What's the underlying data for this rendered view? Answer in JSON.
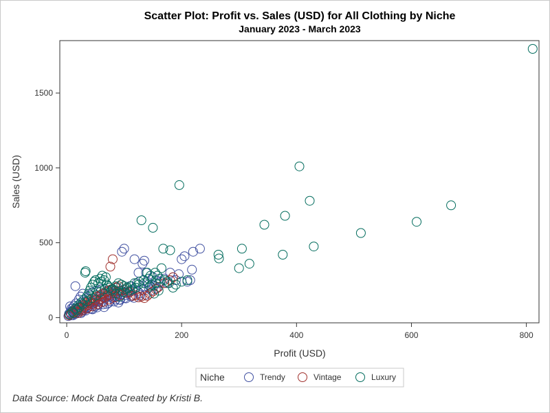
{
  "chart_data": {
    "type": "scatter",
    "title": "Scatter Plot: Profit vs. Sales (USD) for All Clothing by Niche",
    "subtitle": "January 2023 - March 2023",
    "xlabel": "Profit (USD)",
    "ylabel": "Sales (USD)",
    "xlim": [
      -12,
      822
    ],
    "ylim": [
      -35,
      1850
    ],
    "xticks": [
      0,
      200,
      400,
      600,
      800
    ],
    "yticks": [
      0,
      500,
      1000,
      1500
    ],
    "grid": false,
    "legend": {
      "title": "Niche",
      "position": "bottom-center"
    },
    "footnote": "Data Source: Mock Data Created by Kristi B.",
    "series": [
      {
        "name": "Trendy",
        "color": "#3f4fa0",
        "points": [
          [
            3,
            10
          ],
          [
            5,
            20
          ],
          [
            6,
            35
          ],
          [
            8,
            15
          ],
          [
            9,
            45
          ],
          [
            10,
            60
          ],
          [
            12,
            25
          ],
          [
            13,
            80
          ],
          [
            14,
            40
          ],
          [
            15,
            210
          ],
          [
            16,
            95
          ],
          [
            18,
            55
          ],
          [
            20,
            30
          ],
          [
            21,
            120
          ],
          [
            22,
            70
          ],
          [
            24,
            140
          ],
          [
            25,
            45
          ],
          [
            27,
            90
          ],
          [
            28,
            160
          ],
          [
            30,
            60
          ],
          [
            32,
            110
          ],
          [
            34,
            75
          ],
          [
            35,
            130
          ],
          [
            37,
            85
          ],
          [
            40,
            150
          ],
          [
            42,
            95
          ],
          [
            45,
            170
          ],
          [
            48,
            100
          ],
          [
            50,
            120
          ],
          [
            52,
            180
          ],
          [
            55,
            110
          ],
          [
            58,
            140
          ],
          [
            60,
            190
          ],
          [
            62,
            125
          ],
          [
            65,
            160
          ],
          [
            68,
            135
          ],
          [
            70,
            175
          ],
          [
            72,
            150
          ],
          [
            75,
            140
          ],
          [
            78,
            190
          ],
          [
            80,
            130
          ],
          [
            82,
            165
          ],
          [
            85,
            145
          ],
          [
            88,
            200
          ],
          [
            90,
            160
          ],
          [
            92,
            120
          ],
          [
            95,
            180
          ],
          [
            96,
            440
          ],
          [
            100,
            460
          ],
          [
            102,
            150
          ],
          [
            105,
            200
          ],
          [
            108,
            170
          ],
          [
            110,
            210
          ],
          [
            112,
            140
          ],
          [
            115,
            180
          ],
          [
            118,
            390
          ],
          [
            120,
            200
          ],
          [
            122,
            230
          ],
          [
            125,
            300
          ],
          [
            128,
            150
          ],
          [
            132,
            360
          ],
          [
            135,
            380
          ],
          [
            138,
            300
          ],
          [
            140,
            240
          ],
          [
            142,
            220
          ],
          [
            145,
            210
          ],
          [
            150,
            270
          ],
          [
            155,
            250
          ],
          [
            160,
            230
          ],
          [
            200,
            390
          ],
          [
            205,
            410
          ],
          [
            210,
            240
          ],
          [
            215,
            250
          ],
          [
            218,
            320
          ],
          [
            220,
            440
          ],
          [
            232,
            460
          ],
          [
            65,
            70
          ],
          [
            70,
            90
          ],
          [
            40,
            60
          ],
          [
            50,
            75
          ],
          [
            30,
            50
          ],
          [
            20,
            40
          ],
          [
            25,
            30
          ],
          [
            45,
            55
          ],
          [
            55,
            85
          ],
          [
            60,
            100
          ],
          [
            35,
            65
          ],
          [
            75,
            110
          ],
          [
            85,
            120
          ],
          [
            90,
            100
          ],
          [
            100,
            130
          ],
          [
            12,
            50
          ],
          [
            18,
            35
          ],
          [
            8,
            60
          ],
          [
            6,
            75
          ],
          [
            4,
            25
          ],
          [
            11,
            15
          ],
          [
            7,
            30
          ],
          [
            14,
            22
          ],
          [
            16,
            48
          ],
          [
            19,
            65
          ],
          [
            23,
            52
          ],
          [
            26,
            38
          ],
          [
            29,
            82
          ],
          [
            33,
            47
          ],
          [
            38,
            72
          ],
          [
            43,
            58
          ],
          [
            47,
            92
          ],
          [
            53,
            68
          ],
          [
            57,
            118
          ],
          [
            63,
            88
          ],
          [
            67,
            128
          ],
          [
            73,
            98
          ],
          [
            77,
            148
          ],
          [
            83,
            108
          ],
          [
            87,
            138
          ],
          [
            93,
            118
          ],
          [
            97,
            158
          ],
          [
            103,
            128
          ],
          [
            107,
            168
          ],
          [
            113,
            148
          ],
          [
            117,
            132
          ],
          [
            123,
            178
          ],
          [
            127,
            162
          ],
          [
            133,
            188
          ],
          [
            137,
            152
          ],
          [
            143,
            198
          ],
          [
            147,
            182
          ],
          [
            152,
            212
          ],
          [
            157,
            196
          ],
          [
            163,
            242
          ],
          [
            170,
            260
          ],
          [
            175,
            230
          ],
          [
            180,
            300
          ],
          [
            185,
            270
          ],
          [
            190,
            250
          ],
          [
            195,
            290
          ]
        ]
      },
      {
        "name": "Vintage",
        "color": "#a0302c",
        "points": [
          [
            4,
            15
          ],
          [
            8,
            25
          ],
          [
            12,
            35
          ],
          [
            15,
            50
          ],
          [
            18,
            40
          ],
          [
            22,
            65
          ],
          [
            25,
            55
          ],
          [
            28,
            80
          ],
          [
            30,
            70
          ],
          [
            33,
            95
          ],
          [
            36,
            85
          ],
          [
            38,
            110
          ],
          [
            40,
            100
          ],
          [
            42,
            120
          ],
          [
            45,
            90
          ],
          [
            48,
            130
          ],
          [
            50,
            115
          ],
          [
            52,
            140
          ],
          [
            55,
            105
          ],
          [
            58,
            150
          ],
          [
            60,
            125
          ],
          [
            62,
            160
          ],
          [
            65,
            135
          ],
          [
            68,
            170
          ],
          [
            70,
            145
          ],
          [
            72,
            180
          ],
          [
            75,
            155
          ],
          [
            76,
            340
          ],
          [
            78,
            190
          ],
          [
            80,
            390
          ],
          [
            82,
            175
          ],
          [
            85,
            200
          ],
          [
            88,
            165
          ],
          [
            90,
            210
          ],
          [
            92,
            180
          ],
          [
            95,
            220
          ],
          [
            100,
            185
          ],
          [
            105,
            200
          ],
          [
            110,
            170
          ],
          [
            115,
            145
          ],
          [
            120,
            150
          ],
          [
            125,
            135
          ],
          [
            130,
            140
          ],
          [
            135,
            130
          ],
          [
            140,
            145
          ],
          [
            145,
            160
          ],
          [
            150,
            175
          ],
          [
            155,
            190
          ],
          [
            160,
            205
          ],
          [
            170,
            230
          ],
          [
            180,
            250
          ],
          [
            185,
            270
          ],
          [
            20,
            30
          ],
          [
            26,
            45
          ],
          [
            35,
            60
          ],
          [
            44,
            75
          ],
          [
            54,
            90
          ],
          [
            64,
            105
          ],
          [
            74,
            120
          ],
          [
            84,
            135
          ],
          [
            94,
            150
          ],
          [
            104,
            165
          ]
        ]
      },
      {
        "name": "Luxury",
        "color": "#006b5c",
        "points": [
          [
            5,
            20
          ],
          [
            10,
            40
          ],
          [
            15,
            60
          ],
          [
            20,
            80
          ],
          [
            25,
            100
          ],
          [
            30,
            120
          ],
          [
            32,
            300
          ],
          [
            33,
            310
          ],
          [
            35,
            140
          ],
          [
            38,
            160
          ],
          [
            40,
            180
          ],
          [
            42,
            200
          ],
          [
            45,
            220
          ],
          [
            48,
            240
          ],
          [
            50,
            250
          ],
          [
            55,
            230
          ],
          [
            58,
            260
          ],
          [
            60,
            240
          ],
          [
            62,
            280
          ],
          [
            65,
            250
          ],
          [
            68,
            270
          ],
          [
            70,
            220
          ],
          [
            75,
            200
          ],
          [
            80,
            190
          ],
          [
            85,
            210
          ],
          [
            90,
            230
          ],
          [
            95,
            220
          ],
          [
            100,
            210
          ],
          [
            105,
            200
          ],
          [
            110,
            180
          ],
          [
            115,
            190
          ],
          [
            120,
            200
          ],
          [
            125,
            220
          ],
          [
            130,
            650
          ],
          [
            135,
            230
          ],
          [
            140,
            300
          ],
          [
            145,
            210
          ],
          [
            148,
            220
          ],
          [
            150,
            600
          ],
          [
            152,
            160
          ],
          [
            155,
            230
          ],
          [
            160,
            180
          ],
          [
            165,
            330
          ],
          [
            168,
            460
          ],
          [
            175,
            240
          ],
          [
            180,
            450
          ],
          [
            185,
            200
          ],
          [
            190,
            220
          ],
          [
            196,
            885
          ],
          [
            200,
            240
          ],
          [
            210,
            250
          ],
          [
            264,
            420
          ],
          [
            265,
            395
          ],
          [
            300,
            330
          ],
          [
            305,
            460
          ],
          [
            318,
            360
          ],
          [
            344,
            620
          ],
          [
            376,
            420
          ],
          [
            380,
            680
          ],
          [
            405,
            1010
          ],
          [
            423,
            780
          ],
          [
            430,
            475
          ],
          [
            512,
            565
          ],
          [
            609,
            640
          ],
          [
            669,
            750
          ],
          [
            811,
            1795
          ],
          [
            12,
            30
          ],
          [
            18,
            50
          ],
          [
            22,
            70
          ],
          [
            28,
            90
          ],
          [
            36,
            110
          ],
          [
            44,
            130
          ],
          [
            52,
            150
          ],
          [
            58,
            170
          ],
          [
            66,
            190
          ],
          [
            72,
            210
          ],
          [
            78,
            180
          ],
          [
            86,
            160
          ],
          [
            92,
            140
          ],
          [
            98,
            170
          ],
          [
            104,
            190
          ],
          [
            112,
            210
          ],
          [
            118,
            230
          ],
          [
            126,
            240
          ],
          [
            134,
            250
          ],
          [
            142,
            260
          ],
          [
            146,
            280
          ],
          [
            154,
            300
          ],
          [
            158,
            280
          ],
          [
            162,
            260
          ],
          [
            170,
            250
          ],
          [
            178,
            230
          ]
        ]
      }
    ]
  }
}
